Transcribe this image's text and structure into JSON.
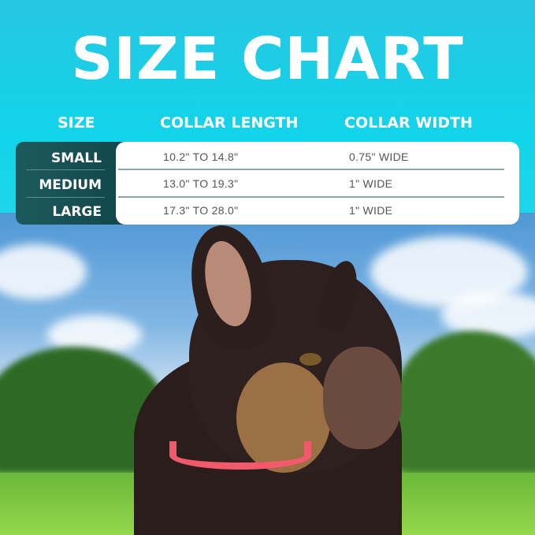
{
  "title": "SIZE CHART",
  "table": {
    "headers": [
      "SIZE",
      "COLLAR LENGTH",
      "COLLAR WIDTH"
    ],
    "rows": [
      {
        "size": "SMALL",
        "length": "10.2\" TO 14.8\"",
        "width": "0.75\" WIDE"
      },
      {
        "size": "MEDIUM",
        "length": "13.0\" TO 19.3\"",
        "width": "1\" WIDE"
      },
      {
        "size": "LARGE",
        "length": "17.3\" TO 28.0\"",
        "width": "1\" WIDE"
      }
    ]
  },
  "colors": {
    "background": "#12d4ea",
    "size_panel": "#114549",
    "collar": "#f05a6a"
  }
}
